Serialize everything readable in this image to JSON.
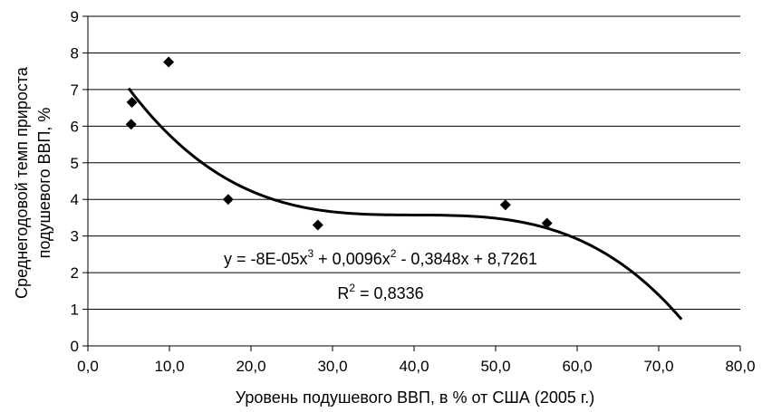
{
  "chart_data": {
    "type": "scatter",
    "title": "",
    "xlabel": "Уровень подушевого ВВП, в % от США (2005 г.)",
    "ylabel_line1": "Среднегодовой темп прироста",
    "ylabel_line2": "подушевого ВВП, %",
    "xlim": [
      0,
      80
    ],
    "ylim": [
      0,
      9
    ],
    "x_ticks": [
      "0,0",
      "10,0",
      "20,0",
      "30,0",
      "40,0",
      "50,0",
      "60,0",
      "70,0",
      "80,0"
    ],
    "y_ticks": [
      "0",
      "1",
      "2",
      "3",
      "4",
      "5",
      "6",
      "7",
      "8",
      "9"
    ],
    "grid": "horizontal",
    "legend": "none",
    "points": [
      {
        "x": 5.3,
        "y": 6.05
      },
      {
        "x": 5.4,
        "y": 6.65
      },
      {
        "x": 9.9,
        "y": 7.75
      },
      {
        "x": 17.2,
        "y": 4.0
      },
      {
        "x": 28.2,
        "y": 3.3
      },
      {
        "x": 51.2,
        "y": 3.85
      },
      {
        "x": 56.3,
        "y": 3.35
      }
    ],
    "trendline": {
      "kind": "polynomial-3",
      "coefficients": [
        -8e-05,
        0.0096,
        -0.3848,
        8.7261
      ],
      "x_range": [
        5.0,
        72.8
      ],
      "equation_parts": [
        "y = -8E-05x",
        "3",
        " + 0,0096x",
        "2",
        " - 0,3848x + 8,7261"
      ],
      "r2_parts": [
        "R",
        "2",
        " = 0,8336"
      ]
    },
    "colors": {
      "marker": "#000000",
      "line": "#000000",
      "grid": "#000000"
    }
  }
}
